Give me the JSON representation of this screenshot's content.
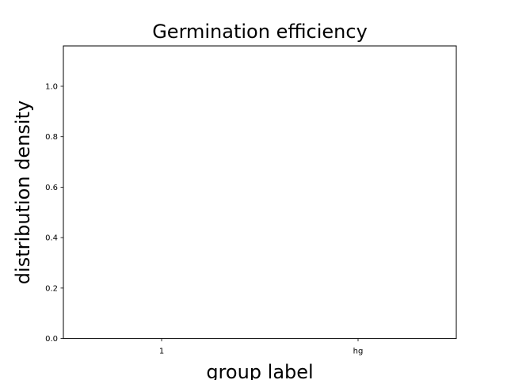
{
  "chart_data": {
    "type": "violin",
    "title": "Germination efficiency",
    "xlabel": "group label",
    "ylabel": "distribution density",
    "categories": [
      "1",
      "hg"
    ],
    "series": [],
    "ylim": [
      0.0,
      1.16
    ],
    "yticks": [
      "0.0",
      "0.2",
      "0.4",
      "0.6",
      "0.8",
      "1.0"
    ],
    "grid": false,
    "legend": "none",
    "colors": {
      "axis": "#000000",
      "background": "#ffffff"
    }
  }
}
